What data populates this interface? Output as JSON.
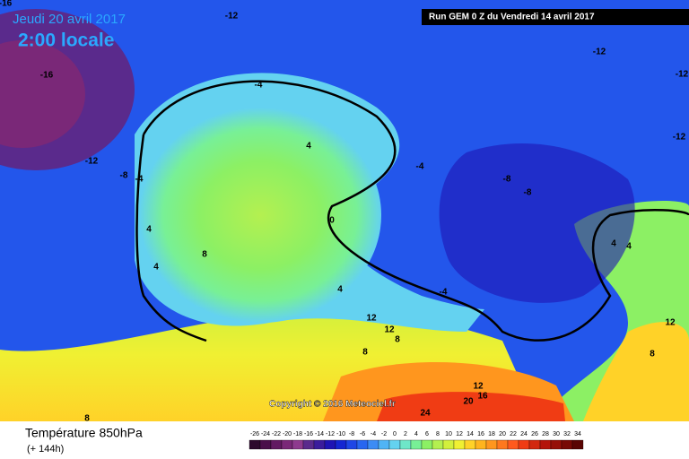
{
  "header": {
    "date": "Jeudi 20 avril 2017",
    "time": "2:00 locale",
    "run": "Run GEM 0 Z du Vendredi 14 avril 2017"
  },
  "copyright": "Copyright © 2016 Meteociel.fr",
  "footer": {
    "title": "Température 850hPa",
    "subtitle": "(+ 144h)"
  },
  "colorbar": {
    "ticks": [
      -26,
      -24,
      -22,
      -20,
      -18,
      -16,
      -14,
      -12,
      -10,
      -8,
      -6,
      -4,
      -2,
      0,
      2,
      4,
      6,
      8,
      10,
      12,
      14,
      16,
      18,
      20,
      22,
      24,
      26,
      28,
      30,
      32,
      34
    ],
    "colors": [
      "#2d0a2d",
      "#4a0f4a",
      "#621a62",
      "#7a2878",
      "#8e3a8e",
      "#5a2a8c",
      "#3a1c9c",
      "#1e14b4",
      "#1426d2",
      "#1e46e6",
      "#2866f0",
      "#3c8cf5",
      "#50b4f5",
      "#64d2f0",
      "#6ee6c8",
      "#78f096",
      "#8cf064",
      "#b4f050",
      "#d2f03c",
      "#f0f032",
      "#ffd228",
      "#ffb41e",
      "#ff961e",
      "#ff781e",
      "#ff5a1e",
      "#f03c14",
      "#d2280f",
      "#b4140a",
      "#961008",
      "#780a05",
      "#5a0503"
    ]
  },
  "contour_labels": [
    "-16",
    "-12",
    "-16",
    "-4",
    "-12",
    "-12",
    "-12",
    "4",
    "-12",
    "-8",
    "-4",
    "-4",
    "-8",
    "-8",
    "0",
    "4",
    "4",
    "4",
    "4",
    "8",
    "4",
    "-4",
    "12",
    "12",
    "8",
    "12",
    "8",
    "8",
    "12",
    "16",
    "20",
    "24",
    "8"
  ]
}
